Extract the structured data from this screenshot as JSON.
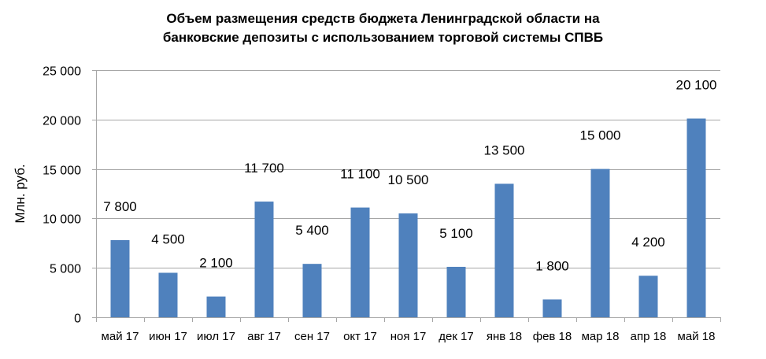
{
  "chart_data": {
    "type": "bar",
    "title_lines": [
      "Объем размещения средств бюджета Ленинградской области на",
      "банковские депозиты с  использованием торговой системы СПВБ"
    ],
    "xlabel": "",
    "ylabel": "Млн. руб.",
    "ylim": [
      0,
      25000
    ],
    "yticks": [
      {
        "value": 0,
        "label": "0"
      },
      {
        "value": 5000,
        "label": "5 000"
      },
      {
        "value": 10000,
        "label": "10 000"
      },
      {
        "value": 15000,
        "label": "15 000"
      },
      {
        "value": 20000,
        "label": "20 000"
      },
      {
        "value": 25000,
        "label": "25 000"
      }
    ],
    "categories": [
      "май 17",
      "июн 17",
      "июл 17",
      "авг 17",
      "сен 17",
      "окт 17",
      "ноя 17",
      "дек 17",
      "янв 18",
      "фев 18",
      "мар 18",
      "апр 18",
      "май 18"
    ],
    "values": [
      7800,
      4500,
      2100,
      11700,
      5400,
      11100,
      10500,
      5100,
      13500,
      1800,
      15000,
      4200,
      20100
    ],
    "data_labels": [
      "7 800",
      "4 500",
      "2 100",
      "11 700",
      "5 400",
      "11 100",
      "10 500",
      "5 100",
      "13 500",
      "1 800",
      "15 000",
      "4 200",
      "20 100"
    ],
    "grid": true,
    "legend": "none",
    "colors": {
      "bar": "#4F81BD",
      "grid": "#A6A6A6",
      "axis": "#A6A6A6",
      "text": "#000000"
    }
  }
}
